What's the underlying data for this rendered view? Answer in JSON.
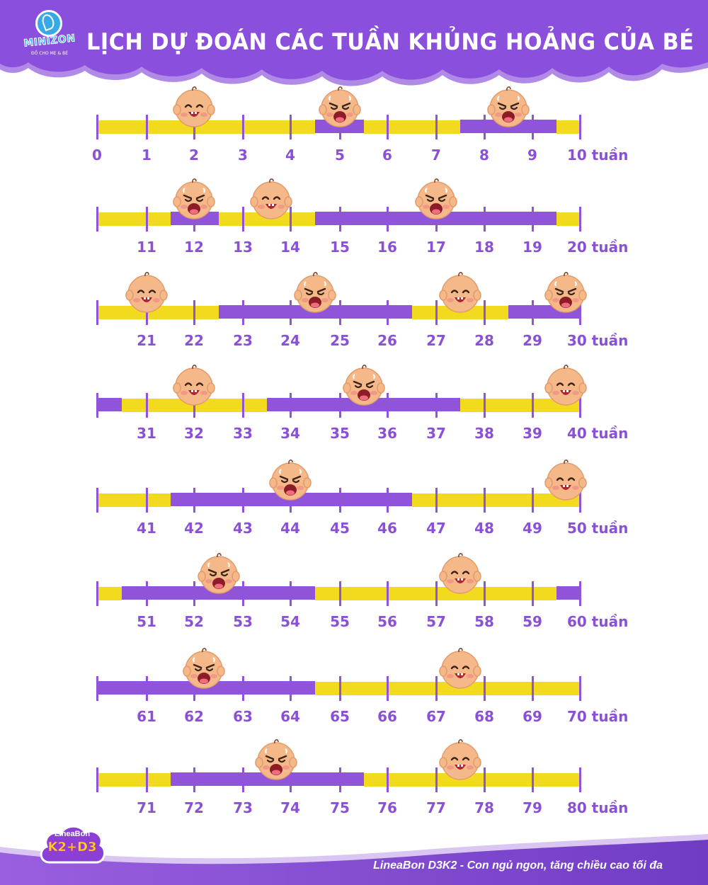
{
  "header": {
    "title": "LỊCH DỰ ĐOÁN CÁC TUẦN KHỦNG HOẢNG CỦA BÉ",
    "logo_name": "MINIZON",
    "logo_tagline": "ĐỒ CHO MẸ & BÉ"
  },
  "colors": {
    "purple": "#8f54d9",
    "yellow": "#f2db1f",
    "label": "#8a50d6",
    "header": "#8a4fdc"
  },
  "unit_label": "tuần",
  "icons": {
    "happy": "happy-baby-face-icon",
    "crying": "crying-baby-face-icon"
  },
  "rows": [
    {
      "labels": [
        "0",
        "1",
        "2",
        "3",
        "4",
        "5",
        "6",
        "7",
        "8",
        "9",
        "10 tuần"
      ],
      "segments": [
        {
          "from": 0,
          "to": 4.5,
          "state": "happy"
        },
        {
          "from": 4.5,
          "to": 5.5,
          "state": "crying"
        },
        {
          "from": 5.5,
          "to": 7.5,
          "state": "happy"
        },
        {
          "from": 7.5,
          "to": 9.5,
          "state": "crying"
        },
        {
          "from": 9.5,
          "to": 10,
          "state": "happy"
        }
      ],
      "faces": [
        {
          "week": 2,
          "mood": "happy"
        },
        {
          "week": 5,
          "mood": "crying"
        },
        {
          "week": 8.5,
          "mood": "crying"
        }
      ]
    },
    {
      "labels": [
        "",
        "11",
        "12",
        "13",
        "14",
        "15",
        "16",
        "17",
        "18",
        "19",
        "20 tuần"
      ],
      "segments": [
        {
          "from": 10,
          "to": 11.5,
          "state": "happy"
        },
        {
          "from": 11.5,
          "to": 12.5,
          "state": "crying"
        },
        {
          "from": 12.5,
          "to": 14.5,
          "state": "happy"
        },
        {
          "from": 14.5,
          "to": 19.5,
          "state": "crying"
        },
        {
          "from": 19.5,
          "to": 20,
          "state": "happy"
        }
      ],
      "faces": [
        {
          "week": 12,
          "mood": "crying"
        },
        {
          "week": 13.6,
          "mood": "happy"
        },
        {
          "week": 17,
          "mood": "crying"
        }
      ]
    },
    {
      "labels": [
        "",
        "21",
        "22",
        "23",
        "24",
        "25",
        "26",
        "27",
        "28",
        "29",
        "30 tuần"
      ],
      "segments": [
        {
          "from": 20,
          "to": 22.5,
          "state": "happy"
        },
        {
          "from": 22.5,
          "to": 26.5,
          "state": "crying"
        },
        {
          "from": 26.5,
          "to": 28.5,
          "state": "happy"
        },
        {
          "from": 28.5,
          "to": 30,
          "state": "crying"
        }
      ],
      "faces": [
        {
          "week": 21,
          "mood": "happy"
        },
        {
          "week": 24.5,
          "mood": "crying"
        },
        {
          "week": 27.5,
          "mood": "happy"
        },
        {
          "week": 29.7,
          "mood": "crying"
        }
      ]
    },
    {
      "labels": [
        "",
        "31",
        "32",
        "33",
        "34",
        "35",
        "36",
        "37",
        "38",
        "39",
        "40 tuần"
      ],
      "segments": [
        {
          "from": 30,
          "to": 30.5,
          "state": "crying"
        },
        {
          "from": 30.5,
          "to": 33.5,
          "state": "happy"
        },
        {
          "from": 33.5,
          "to": 37.5,
          "state": "crying"
        },
        {
          "from": 37.5,
          "to": 40,
          "state": "happy"
        }
      ],
      "faces": [
        {
          "week": 32,
          "mood": "happy"
        },
        {
          "week": 35.5,
          "mood": "crying"
        },
        {
          "week": 39.7,
          "mood": "happy"
        }
      ]
    },
    {
      "labels": [
        "",
        "41",
        "42",
        "43",
        "44",
        "45",
        "46",
        "47",
        "48",
        "49",
        "50 tuần"
      ],
      "segments": [
        {
          "from": 40,
          "to": 41.5,
          "state": "happy"
        },
        {
          "from": 41.5,
          "to": 46.5,
          "state": "crying"
        },
        {
          "from": 46.5,
          "to": 50,
          "state": "happy"
        }
      ],
      "faces": [
        {
          "week": 44,
          "mood": "crying"
        },
        {
          "week": 49.7,
          "mood": "happy"
        }
      ]
    },
    {
      "labels": [
        "",
        "51",
        "52",
        "53",
        "54",
        "55",
        "56",
        "57",
        "58",
        "59",
        "60 tuần"
      ],
      "segments": [
        {
          "from": 50,
          "to": 50.5,
          "state": "happy"
        },
        {
          "from": 50.5,
          "to": 54.5,
          "state": "crying"
        },
        {
          "from": 54.5,
          "to": 59.5,
          "state": "happy"
        },
        {
          "from": 59.5,
          "to": 60,
          "state": "crying"
        }
      ],
      "faces": [
        {
          "week": 52.5,
          "mood": "crying"
        },
        {
          "week": 57.5,
          "mood": "happy"
        }
      ]
    },
    {
      "labels": [
        "",
        "61",
        "62",
        "63",
        "64",
        "65",
        "66",
        "67",
        "68",
        "69",
        "70 tuần"
      ],
      "segments": [
        {
          "from": 60,
          "to": 64.5,
          "state": "crying"
        },
        {
          "from": 64.5,
          "to": 70,
          "state": "happy"
        }
      ],
      "faces": [
        {
          "week": 62.2,
          "mood": "crying"
        },
        {
          "week": 67.5,
          "mood": "happy"
        }
      ]
    },
    {
      "labels": [
        "",
        "71",
        "72",
        "73",
        "74",
        "75",
        "76",
        "77",
        "78",
        "79",
        "80 tuần"
      ],
      "segments": [
        {
          "from": 70,
          "to": 71.5,
          "state": "happy"
        },
        {
          "from": 71.5,
          "to": 75.5,
          "state": "crying"
        },
        {
          "from": 75.5,
          "to": 80,
          "state": "happy"
        }
      ],
      "faces": [
        {
          "week": 73.7,
          "mood": "crying"
        },
        {
          "week": 77.5,
          "mood": "happy"
        }
      ]
    }
  ],
  "footer": {
    "brand_line1": "LineaBon",
    "brand_line2": "K2+D3",
    "tagline": "LineaBon D3K2 - Con ngủ ngon, tăng chiều cao tối đa"
  }
}
